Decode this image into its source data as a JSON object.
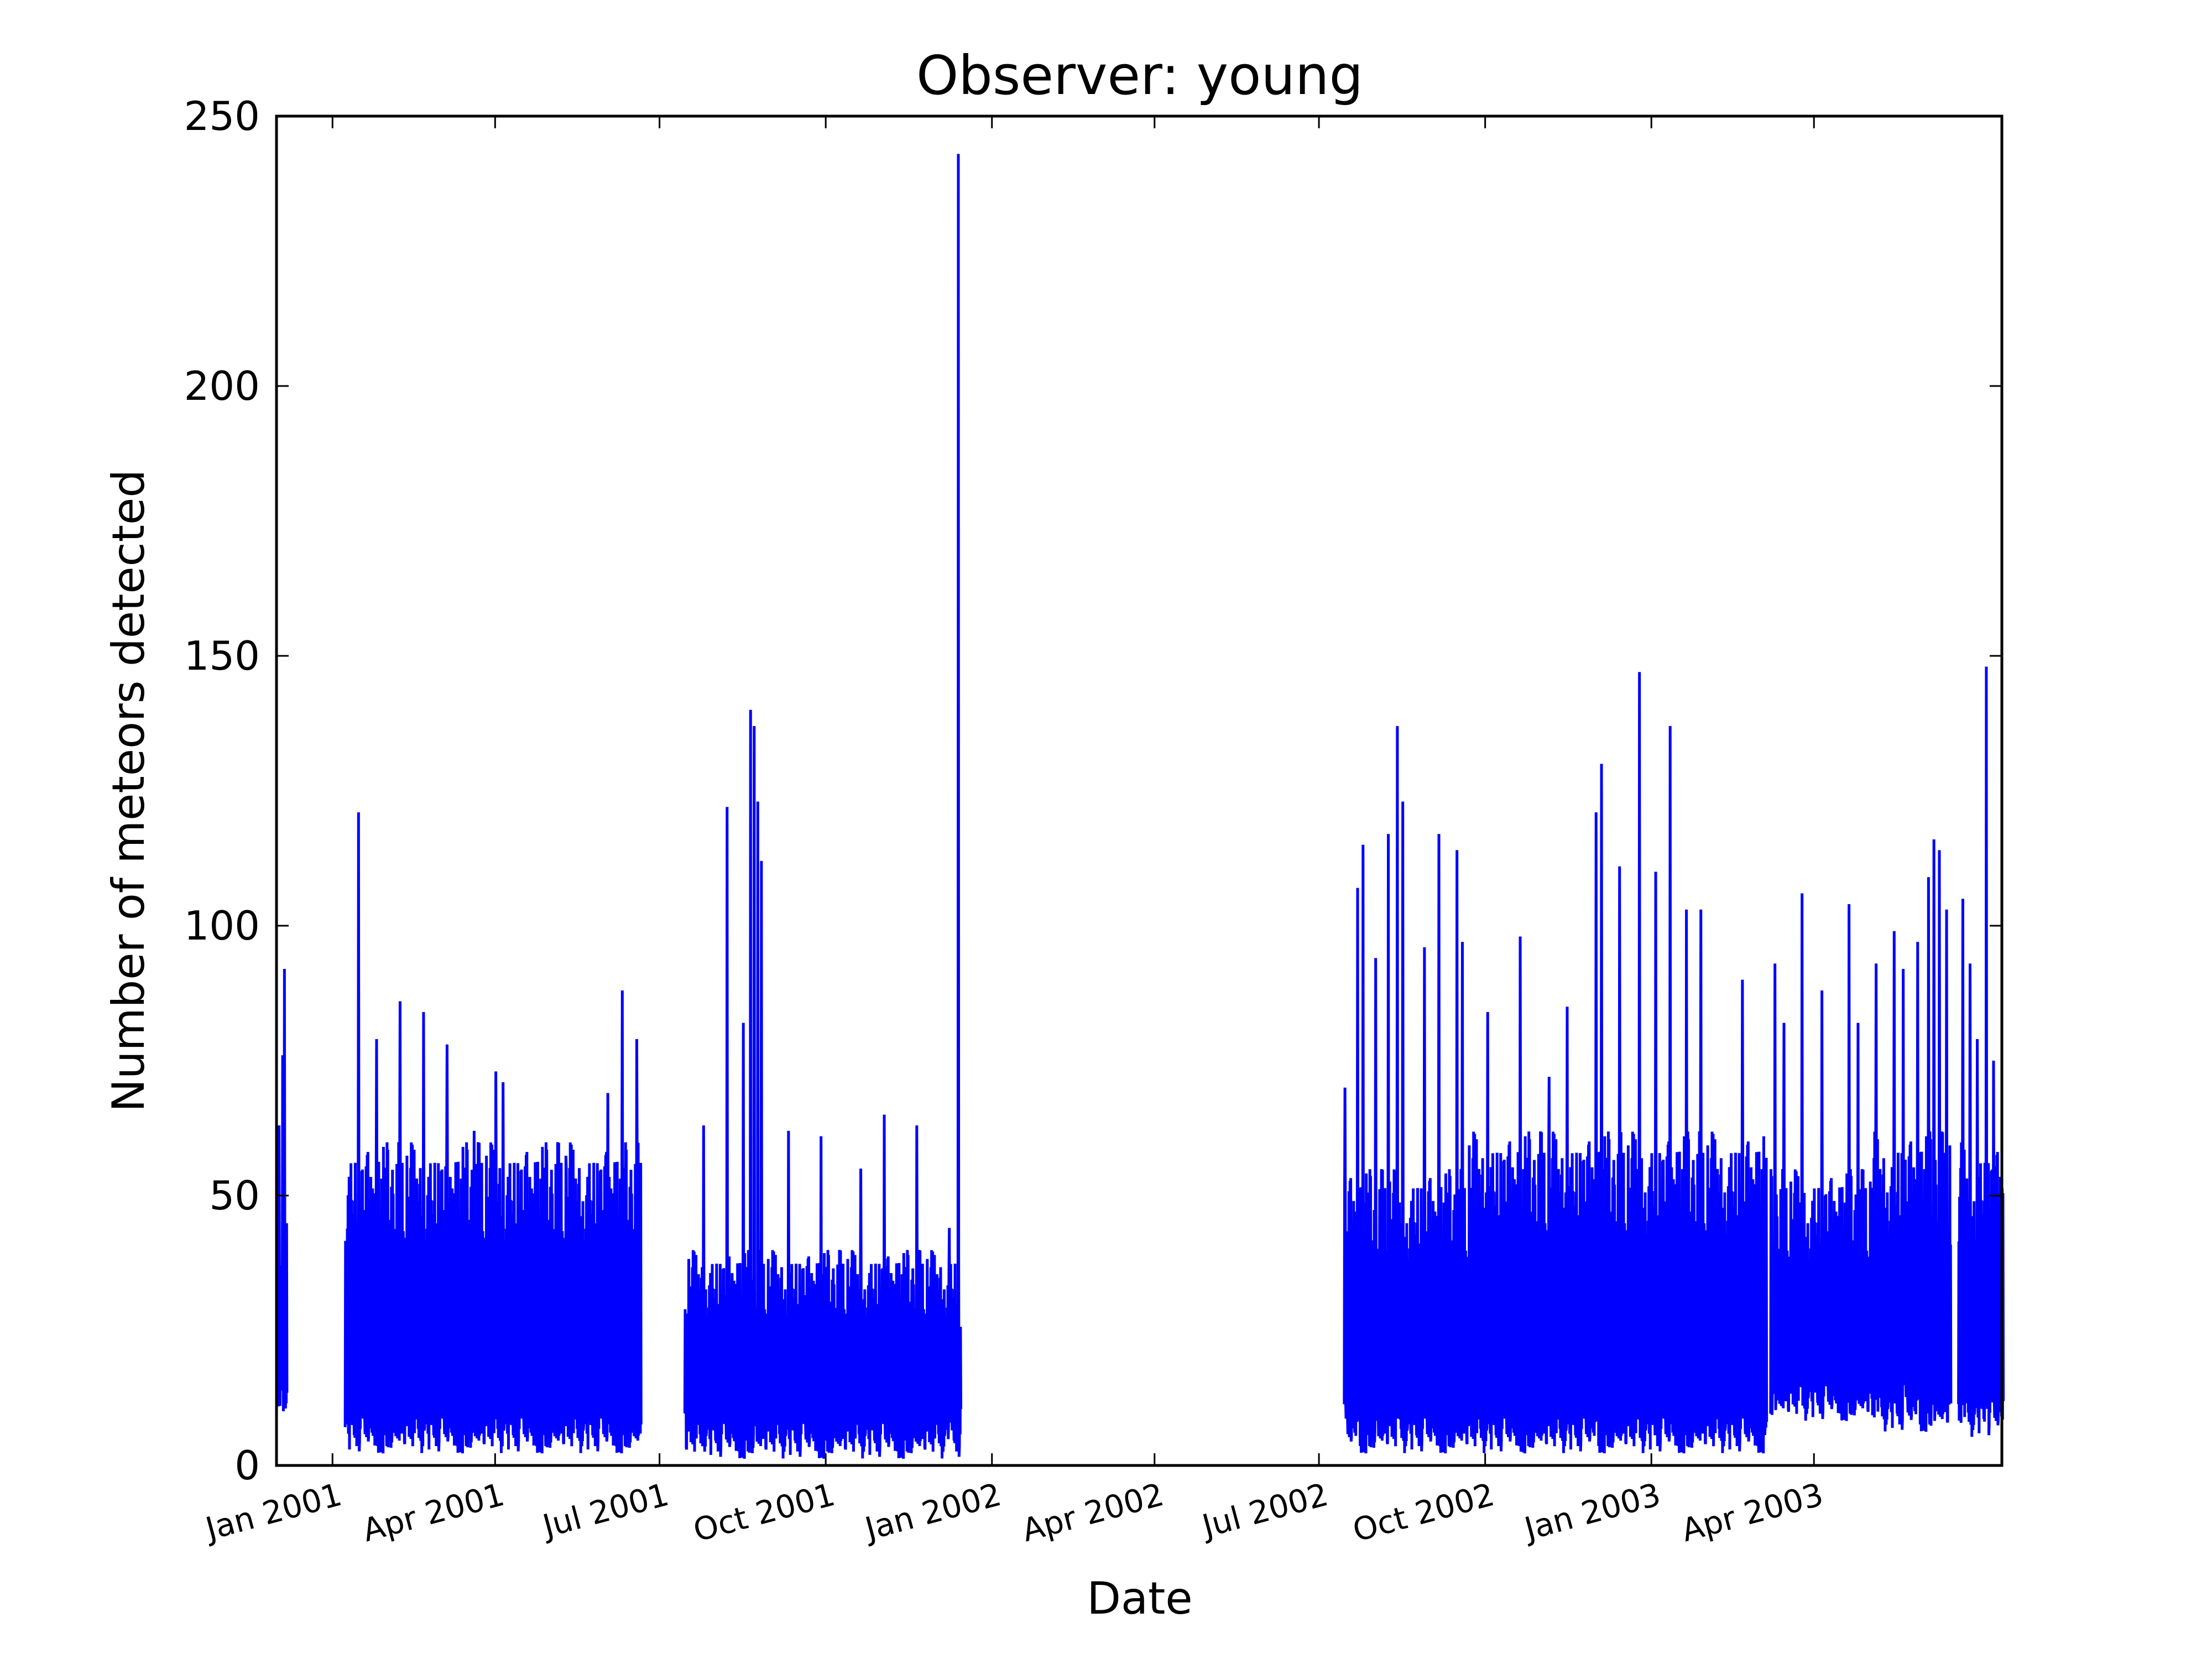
{
  "chart_data": {
    "type": "line",
    "title": "Observer: young",
    "xlabel": "Date",
    "ylabel": "Number of meteors detected",
    "xlim": [
      "2000-12-01",
      "2003-07-14"
    ],
    "ylim": [
      0,
      250
    ],
    "grid": false,
    "legend": "none",
    "line_color": "#0000ff",
    "yticks": [
      {
        "value": 0,
        "label": "0"
      },
      {
        "value": 50,
        "label": "50"
      },
      {
        "value": 100,
        "label": "100"
      },
      {
        "value": 150,
        "label": "150"
      },
      {
        "value": 200,
        "label": "200"
      },
      {
        "value": 250,
        "label": "250"
      }
    ],
    "xticks": [
      {
        "date": "2001-01-01",
        "label": "Jan 2001"
      },
      {
        "date": "2001-04-01",
        "label": "Apr 2001"
      },
      {
        "date": "2001-07-01",
        "label": "Jul 2001"
      },
      {
        "date": "2001-10-01",
        "label": "Oct 2001"
      },
      {
        "date": "2002-01-01",
        "label": "Jan 2002"
      },
      {
        "date": "2002-04-01",
        "label": "Apr 2002"
      },
      {
        "date": "2002-07-01",
        "label": "Jul 2002"
      },
      {
        "date": "2002-10-01",
        "label": "Oct 2002"
      },
      {
        "date": "2003-01-01",
        "label": "Jan 2003"
      },
      {
        "date": "2003-04-01",
        "label": "Apr 2003"
      }
    ],
    "segments": [
      {
        "start": "2000-12-01",
        "end": "2000-12-06",
        "low": 10,
        "high": 55,
        "peaks": [
          [
            "2000-12-05",
            92
          ],
          [
            "2000-12-04",
            76
          ],
          [
            "2000-12-02",
            63
          ]
        ]
      },
      {
        "start": "2001-01-08",
        "end": "2001-06-20",
        "low": 3,
        "high": 60,
        "peaks": [
          [
            "2001-01-15",
            121
          ],
          [
            "2001-02-07",
            86
          ],
          [
            "2001-02-20",
            84
          ],
          [
            "2001-03-05",
            78
          ],
          [
            "2001-04-01",
            73
          ],
          [
            "2001-04-05",
            71
          ],
          [
            "2001-01-25",
            79
          ],
          [
            "2001-05-10",
            55
          ],
          [
            "2001-06-10",
            88
          ],
          [
            "2001-06-18",
            79
          ],
          [
            "2001-06-02",
            69
          ],
          [
            "2001-03-20",
            62
          ]
        ]
      },
      {
        "start": "2001-07-15",
        "end": "2001-12-14",
        "low": 2,
        "high": 40,
        "peaks": [
          [
            "2001-08-07",
            122
          ],
          [
            "2001-08-20",
            140
          ],
          [
            "2001-08-22",
            137
          ],
          [
            "2001-08-24",
            123
          ],
          [
            "2001-08-26",
            112
          ],
          [
            "2001-08-16",
            82
          ],
          [
            "2001-07-25",
            63
          ],
          [
            "2001-09-10",
            62
          ],
          [
            "2001-09-28",
            61
          ],
          [
            "2001-10-20",
            55
          ],
          [
            "2001-11-02",
            65
          ],
          [
            "2001-11-20",
            63
          ],
          [
            "2001-12-08",
            44
          ],
          [
            "2001-12-13",
            243
          ]
        ]
      },
      {
        "start": "2002-07-15",
        "end": "2002-09-21",
        "low": 3,
        "high": 55,
        "peaks": [
          [
            "2002-07-15",
            70
          ],
          [
            "2002-07-22",
            107
          ],
          [
            "2002-07-25",
            115
          ],
          [
            "2002-08-01",
            94
          ],
          [
            "2002-08-08",
            117
          ],
          [
            "2002-08-13",
            137
          ],
          [
            "2002-08-16",
            123
          ],
          [
            "2002-08-28",
            96
          ],
          [
            "2002-09-05",
            117
          ],
          [
            "2002-09-15",
            114
          ],
          [
            "2002-09-18",
            97
          ]
        ]
      },
      {
        "start": "2002-09-22",
        "end": "2003-03-05",
        "low": 3,
        "high": 62,
        "peaks": [
          [
            "2002-10-02",
            84
          ],
          [
            "2002-10-20",
            98
          ],
          [
            "2002-11-15",
            85
          ],
          [
            "2002-12-01",
            121
          ],
          [
            "2002-12-04",
            130
          ],
          [
            "2002-12-14",
            111
          ],
          [
            "2002-12-25",
            147
          ],
          [
            "2003-01-03",
            110
          ],
          [
            "2003-01-11",
            137
          ],
          [
            "2003-01-20",
            103
          ],
          [
            "2003-01-28",
            103
          ],
          [
            "2003-02-20",
            90
          ],
          [
            "2002-11-05",
            72
          ]
        ]
      },
      {
        "start": "2003-03-08",
        "end": "2003-05-02",
        "low": 9,
        "high": 55,
        "peaks": [
          [
            "2003-03-10",
            93
          ],
          [
            "2003-03-25",
            106
          ],
          [
            "2003-04-05",
            88
          ],
          [
            "2003-04-20",
            104
          ],
          [
            "2003-04-25",
            82
          ],
          [
            "2003-03-15",
            82
          ]
        ]
      },
      {
        "start": "2003-05-03",
        "end": "2003-06-15",
        "low": 7,
        "high": 62,
        "peaks": [
          [
            "2003-05-05",
            93
          ],
          [
            "2003-05-15",
            99
          ],
          [
            "2003-05-28",
            97
          ],
          [
            "2003-06-03",
            109
          ],
          [
            "2003-06-06",
            116
          ],
          [
            "2003-06-09",
            114
          ],
          [
            "2003-06-13",
            103
          ],
          [
            "2003-05-20",
            92
          ]
        ]
      },
      {
        "start": "2003-06-20",
        "end": "2003-07-14",
        "low": 6,
        "high": 60,
        "peaks": [
          [
            "2003-06-22",
            105
          ],
          [
            "2003-06-26",
            93
          ],
          [
            "2003-07-05",
            148
          ],
          [
            "2003-07-09",
            75
          ],
          [
            "2003-06-30",
            79
          ]
        ]
      }
    ]
  }
}
